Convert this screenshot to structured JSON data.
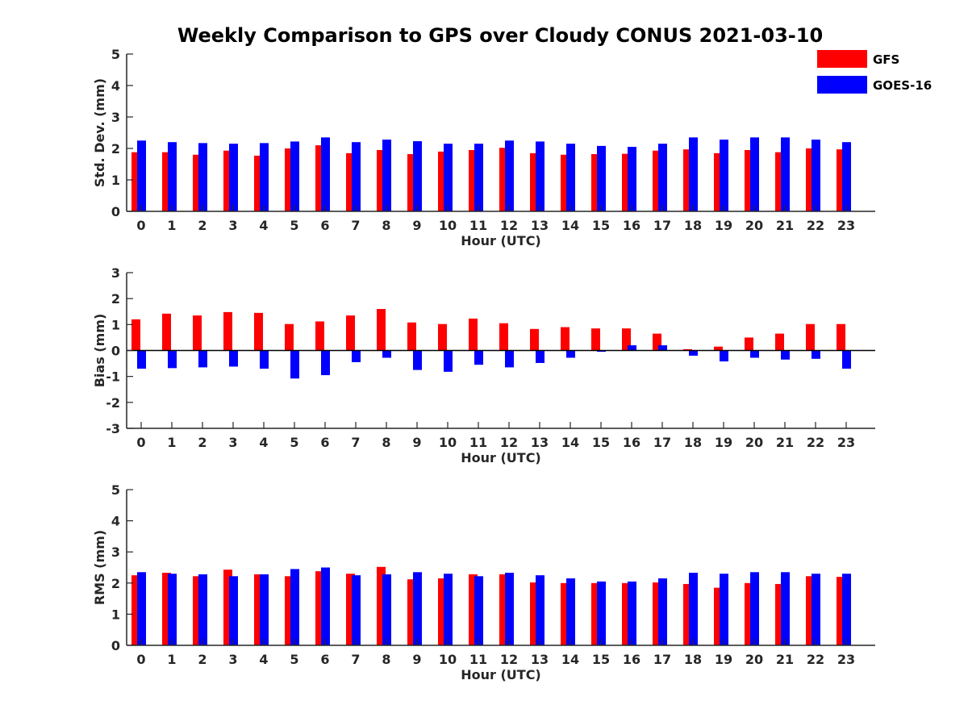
{
  "title": "Weekly Comparison to GPS over Cloudy CONUS 2021-03-10",
  "colors": {
    "GFS": "#ff0000",
    "GOES-16": "#0000ff",
    "axis": "#262626"
  },
  "legend": {
    "placement": "top-right",
    "entries": [
      "GFS",
      "GOES-16"
    ]
  },
  "chart_data": [
    {
      "type": "bar",
      "xlabel": "Hour (UTC)",
      "ylabel": "Std. Dev. (mm)",
      "ylim": [
        0,
        5
      ],
      "yticks": [
        0,
        1,
        2,
        3,
        4,
        5
      ],
      "categories": [
        "0",
        "1",
        "2",
        "3",
        "4",
        "5",
        "6",
        "7",
        "8",
        "9",
        "10",
        "11",
        "12",
        "13",
        "14",
        "15",
        "16",
        "17",
        "18",
        "19",
        "20",
        "21",
        "22",
        "23"
      ],
      "series": [
        {
          "name": "GFS",
          "values": [
            1.88,
            1.88,
            1.8,
            1.93,
            1.77,
            2.0,
            2.1,
            1.85,
            1.95,
            1.82,
            1.9,
            1.95,
            2.02,
            1.85,
            1.8,
            1.82,
            1.83,
            1.93,
            1.97,
            1.85,
            1.95,
            1.88,
            2.0,
            1.97
          ]
        },
        {
          "name": "GOES-16",
          "values": [
            2.25,
            2.2,
            2.17,
            2.15,
            2.17,
            2.22,
            2.35,
            2.2,
            2.28,
            2.23,
            2.15,
            2.15,
            2.25,
            2.22,
            2.15,
            2.08,
            2.05,
            2.15,
            2.35,
            2.28,
            2.35,
            2.35,
            2.28,
            2.2
          ]
        }
      ]
    },
    {
      "type": "bar",
      "xlabel": "Hour (UTC)",
      "ylabel": "Bias (mm)",
      "ylim": [
        -3,
        3
      ],
      "yticks": [
        -3,
        -2,
        -1,
        0,
        1,
        2,
        3
      ],
      "categories": [
        "0",
        "1",
        "2",
        "3",
        "4",
        "5",
        "6",
        "7",
        "8",
        "9",
        "10",
        "11",
        "12",
        "13",
        "14",
        "15",
        "16",
        "17",
        "18",
        "19",
        "20",
        "21",
        "22",
        "23"
      ],
      "series": [
        {
          "name": "GFS",
          "values": [
            1.2,
            1.42,
            1.35,
            1.48,
            1.45,
            1.02,
            1.12,
            1.35,
            1.6,
            1.08,
            1.02,
            1.23,
            1.05,
            0.83,
            0.9,
            0.85,
            0.85,
            0.65,
            0.05,
            0.15,
            0.5,
            0.65,
            1.02,
            1.02
          ]
        },
        {
          "name": "GOES-16",
          "values": [
            -0.7,
            -0.68,
            -0.65,
            -0.62,
            -0.7,
            -1.08,
            -0.95,
            -0.45,
            -0.28,
            -0.75,
            -0.82,
            -0.55,
            -0.65,
            -0.48,
            -0.28,
            -0.05,
            0.2,
            0.2,
            -0.2,
            -0.42,
            -0.28,
            -0.35,
            -0.32,
            -0.7
          ]
        }
      ]
    },
    {
      "type": "bar",
      "xlabel": "Hour (UTC)",
      "ylabel": "RMS (mm)",
      "ylim": [
        0,
        5
      ],
      "yticks": [
        0,
        1,
        2,
        3,
        4,
        5
      ],
      "categories": [
        "0",
        "1",
        "2",
        "3",
        "4",
        "5",
        "6",
        "7",
        "8",
        "9",
        "10",
        "11",
        "12",
        "13",
        "14",
        "15",
        "16",
        "17",
        "18",
        "19",
        "20",
        "21",
        "22",
        "23"
      ],
      "series": [
        {
          "name": "GFS",
          "values": [
            2.25,
            2.33,
            2.22,
            2.43,
            2.28,
            2.22,
            2.38,
            2.3,
            2.52,
            2.12,
            2.15,
            2.28,
            2.28,
            2.02,
            2.0,
            2.0,
            2.0,
            2.02,
            1.97,
            1.85,
            2.0,
            1.97,
            2.22,
            2.2
          ]
        },
        {
          "name": "GOES-16",
          "values": [
            2.35,
            2.3,
            2.28,
            2.22,
            2.28,
            2.45,
            2.5,
            2.25,
            2.28,
            2.35,
            2.3,
            2.22,
            2.33,
            2.25,
            2.15,
            2.05,
            2.05,
            2.15,
            2.33,
            2.3,
            2.35,
            2.35,
            2.3,
            2.3
          ]
        }
      ]
    }
  ]
}
